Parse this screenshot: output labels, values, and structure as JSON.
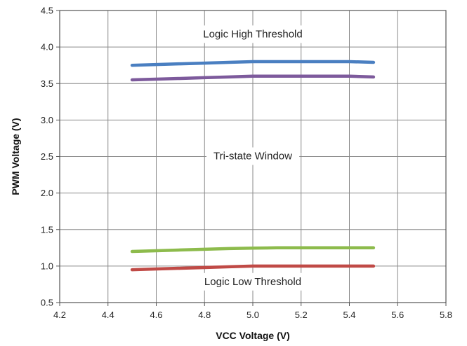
{
  "chart_data": {
    "type": "line",
    "title": "",
    "xlabel": "VCC Voltage (V)",
    "ylabel": "PWM Voltage (V)",
    "xlim": [
      4.2,
      5.8
    ],
    "ylim": [
      0.5,
      4.5
    ],
    "x_ticks": [
      "4.2",
      "4.4",
      "4.6",
      "4.8",
      "5.0",
      "5.2",
      "5.4",
      "5.6",
      "5.8"
    ],
    "y_ticks": [
      "0.5",
      "1.0",
      "1.5",
      "2.0",
      "2.5",
      "3.0",
      "3.5",
      "4.0",
      "4.5"
    ],
    "grid": true,
    "legend": "none",
    "series": [
      {
        "color": "#4a7fc1",
        "x": [
          4.5,
          4.6,
          4.7,
          4.8,
          4.9,
          5.0,
          5.1,
          5.2,
          5.3,
          5.4,
          5.5
        ],
        "y": [
          3.75,
          3.76,
          3.77,
          3.78,
          3.79,
          3.8,
          3.8,
          3.8,
          3.8,
          3.8,
          3.79
        ]
      },
      {
        "color": "#7d5a9c",
        "x": [
          4.5,
          4.6,
          4.7,
          4.8,
          4.9,
          5.0,
          5.1,
          5.2,
          5.3,
          5.4,
          5.5
        ],
        "y": [
          3.55,
          3.56,
          3.57,
          3.58,
          3.59,
          3.6,
          3.6,
          3.6,
          3.6,
          3.6,
          3.59
        ]
      },
      {
        "color": "#8dbb4c",
        "x": [
          4.5,
          4.6,
          4.7,
          4.8,
          4.9,
          5.0,
          5.1,
          5.2,
          5.3,
          5.4,
          5.5
        ],
        "y": [
          1.2,
          1.21,
          1.22,
          1.23,
          1.24,
          1.245,
          1.25,
          1.25,
          1.25,
          1.25,
          1.25
        ]
      },
      {
        "color": "#c04a46",
        "x": [
          4.5,
          4.6,
          4.7,
          4.8,
          4.9,
          5.0,
          5.1,
          5.2,
          5.3,
          5.4,
          5.5
        ],
        "y": [
          0.95,
          0.96,
          0.97,
          0.98,
          0.99,
          1.0,
          1.0,
          1.0,
          1.0,
          1.0,
          1.0
        ]
      }
    ],
    "annotations": [
      {
        "text": "Logic High Threshold",
        "x": 5.0,
        "y": 4.17
      },
      {
        "text": "Tri-state Window",
        "x": 5.0,
        "y": 2.5
      },
      {
        "text": "Logic Low Threshold",
        "x": 5.0,
        "y": 0.78
      }
    ]
  }
}
